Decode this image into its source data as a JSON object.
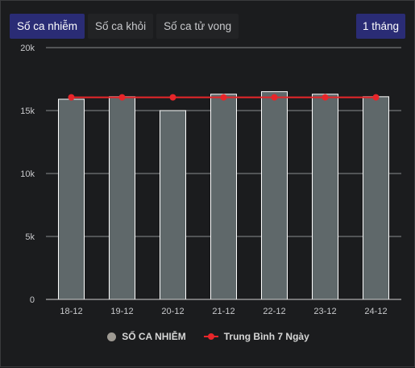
{
  "tabs": [
    {
      "label": "Số ca nhiễm",
      "active": true
    },
    {
      "label": "Số ca khỏi",
      "active": false
    },
    {
      "label": "Số ca tử vong",
      "active": false
    }
  ],
  "period_label": "1 tháng",
  "colors": {
    "bar": "#5f686a",
    "bar_border": "#ffffff",
    "line": "#e8262a",
    "tab_active": "#2a2c75"
  },
  "chart_data": {
    "type": "bar",
    "categories": [
      "18-12",
      "19-12",
      "20-12",
      "21-12",
      "22-12",
      "23-12",
      "24-12"
    ],
    "series": [
      {
        "name": "SỐ CA NHIỄM",
        "type": "bar",
        "values": [
          15900,
          16100,
          15000,
          16300,
          16500,
          16300,
          16100
        ]
      },
      {
        "name": "Trung Bình 7 Ngày",
        "type": "line",
        "values": [
          16050,
          16050,
          16050,
          16050,
          16050,
          16050,
          16050
        ]
      }
    ],
    "yticks": [
      "0",
      "5k",
      "10k",
      "15k",
      "20k"
    ],
    "ylim": [
      0,
      20000
    ],
    "grid": true,
    "legend_position": "bottom"
  }
}
